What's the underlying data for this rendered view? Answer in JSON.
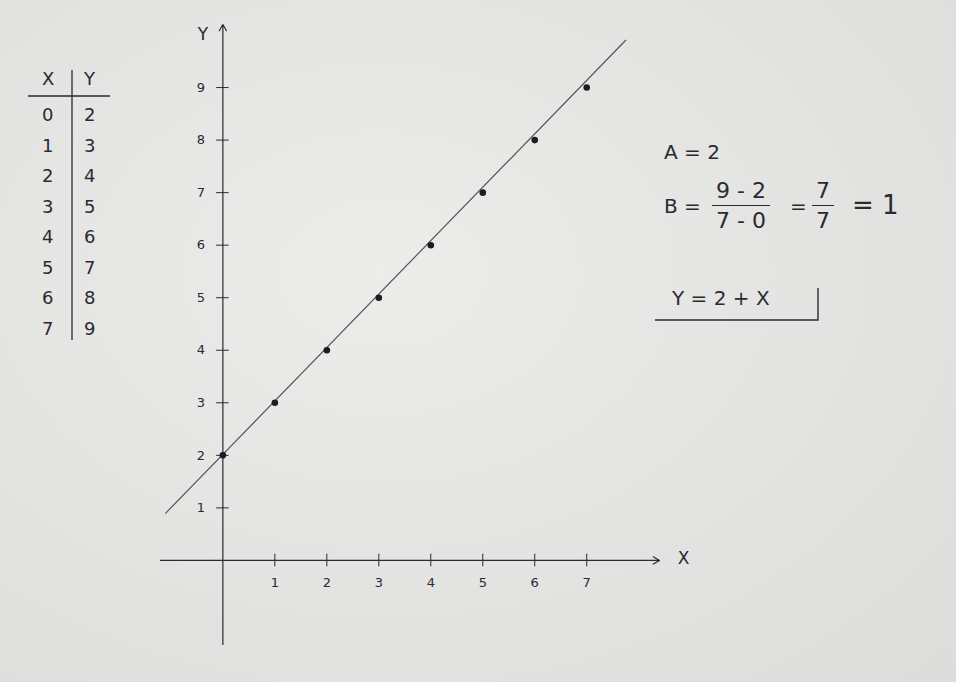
{
  "chart_data": {
    "type": "scatter",
    "x_label": "X",
    "y_label": "Y",
    "x": [
      0,
      1,
      2,
      3,
      4,
      5,
      6,
      7
    ],
    "values": [
      2,
      3,
      4,
      5,
      6,
      7,
      8,
      9
    ],
    "color": "#1c1c28",
    "marker": "circle",
    "series": [
      {
        "type": "line",
        "line_style": "solid",
        "color": "#555555",
        "x": [
          -1.1,
          7.75
        ],
        "values": [
          0.9,
          9.9
        ]
      }
    ],
    "xlim": [
      -1.2,
      8.4
    ],
    "ylim": [
      -1.6,
      10.2
    ],
    "xticks": [
      1,
      2,
      3,
      4,
      5,
      6,
      7
    ],
    "yticks": [
      1,
      2,
      3,
      4,
      5,
      6,
      7,
      8,
      9
    ],
    "grid": false
  },
  "table": {
    "columns": [
      "X",
      "Y"
    ],
    "rows": [
      [
        "0",
        "2"
      ],
      [
        "1",
        "3"
      ],
      [
        "2",
        "4"
      ],
      [
        "3",
        "5"
      ],
      [
        "4",
        "6"
      ],
      [
        "5",
        "7"
      ],
      [
        "6",
        "8"
      ],
      [
        "7",
        "9"
      ]
    ]
  },
  "annotations": {
    "a": "A = 2",
    "b": {
      "label": "B =",
      "fraction": {
        "numerator": "9 - 2",
        "denominator": "7 - 0"
      },
      "equals": "=",
      "fraction2": {
        "numerator": "7",
        "denominator": "7"
      },
      "result": "= 1"
    },
    "equation": "Y = 2 + X"
  }
}
